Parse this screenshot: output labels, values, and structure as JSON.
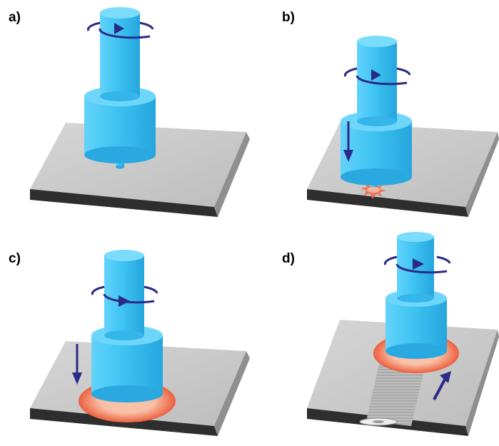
{
  "panels": [
    {
      "label": "a)",
      "stage": "spinning-tool-above-plate"
    },
    {
      "label": "b)",
      "stage": "plunge-into-plate"
    },
    {
      "label": "c)",
      "stage": "shoulder-contact-heating"
    },
    {
      "label": "d)",
      "stage": "traverse-along-joint"
    }
  ],
  "colors": {
    "tool": "#3ec3f2",
    "tool_dark": "#2aa9e0",
    "tool_top": "#6fd6fb",
    "plate_top": "#c9c9c9",
    "plate_side": "#8f8f8f",
    "plate_front": "#2b2b2b",
    "arrow": "#2b2a88",
    "heat": "#ef6a4a",
    "heat_light": "#f8b49c",
    "weld_seam": "#9a9a9a"
  }
}
